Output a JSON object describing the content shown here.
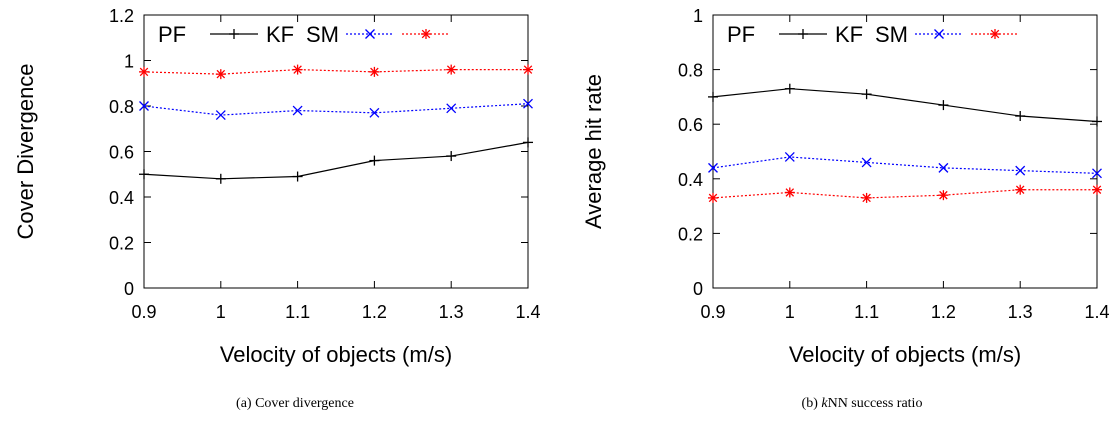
{
  "chart_data": [
    {
      "type": "line",
      "xlabel": "Velocity of objects (m/s)",
      "ylabel": "Cover Divergence",
      "x": [
        0.9,
        1,
        1.1,
        1.2,
        1.3,
        1.4
      ],
      "x_tick_labels": [
        "0.9",
        "1",
        "1.1",
        "1.2",
        "1.3",
        "1.4"
      ],
      "y_tick_labels": [
        "0",
        "0.2",
        "0.4",
        "0.6",
        "0.8",
        "1",
        "1.2"
      ],
      "ylim": [
        0,
        1.2
      ],
      "grid": false,
      "legend_placement": "top-left",
      "series": [
        {
          "name": "KF",
          "legend_prefix": "PF",
          "color": "#000000",
          "marker": "plus",
          "dash": "solid",
          "values": [
            0.5,
            0.48,
            0.49,
            0.56,
            0.58,
            0.64
          ]
        },
        {
          "name": "SM",
          "color": "#0000ff",
          "marker": "x",
          "dash": "dotted",
          "values": [
            0.8,
            0.76,
            0.78,
            0.77,
            0.79,
            0.81
          ]
        },
        {
          "name": "",
          "color": "#ff0000",
          "marker": "star",
          "dash": "dotted",
          "values": [
            0.95,
            0.94,
            0.96,
            0.95,
            0.96,
            0.96
          ]
        }
      ],
      "caption": {
        "prefix": "(a) Cover divergence",
        "italic": "",
        "suffix": ""
      }
    },
    {
      "type": "line",
      "xlabel": "Velocity of objects (m/s)",
      "ylabel": "Average hit rate",
      "x": [
        0.9,
        1,
        1.1,
        1.2,
        1.3,
        1.4
      ],
      "x_tick_labels": [
        "0.9",
        "1",
        "1.1",
        "1.2",
        "1.3",
        "1.4"
      ],
      "y_tick_labels": [
        "0",
        "0.2",
        "0.4",
        "0.6",
        "0.8",
        "1"
      ],
      "ylim": [
        0,
        1
      ],
      "grid": false,
      "legend_placement": "top-left",
      "series": [
        {
          "name": "KF",
          "legend_prefix": "PF",
          "color": "#000000",
          "marker": "plus",
          "dash": "solid",
          "values": [
            0.7,
            0.73,
            0.71,
            0.67,
            0.63,
            0.61
          ]
        },
        {
          "name": "SM",
          "color": "#0000ff",
          "marker": "x",
          "dash": "dotted",
          "values": [
            0.44,
            0.48,
            0.46,
            0.44,
            0.43,
            0.42
          ]
        },
        {
          "name": "",
          "color": "#ff0000",
          "marker": "star",
          "dash": "dotted",
          "values": [
            0.33,
            0.35,
            0.33,
            0.34,
            0.36,
            0.36
          ]
        }
      ],
      "caption": {
        "prefix": "(b) ",
        "italic": "k",
        "suffix": "NN success ratio"
      }
    }
  ]
}
